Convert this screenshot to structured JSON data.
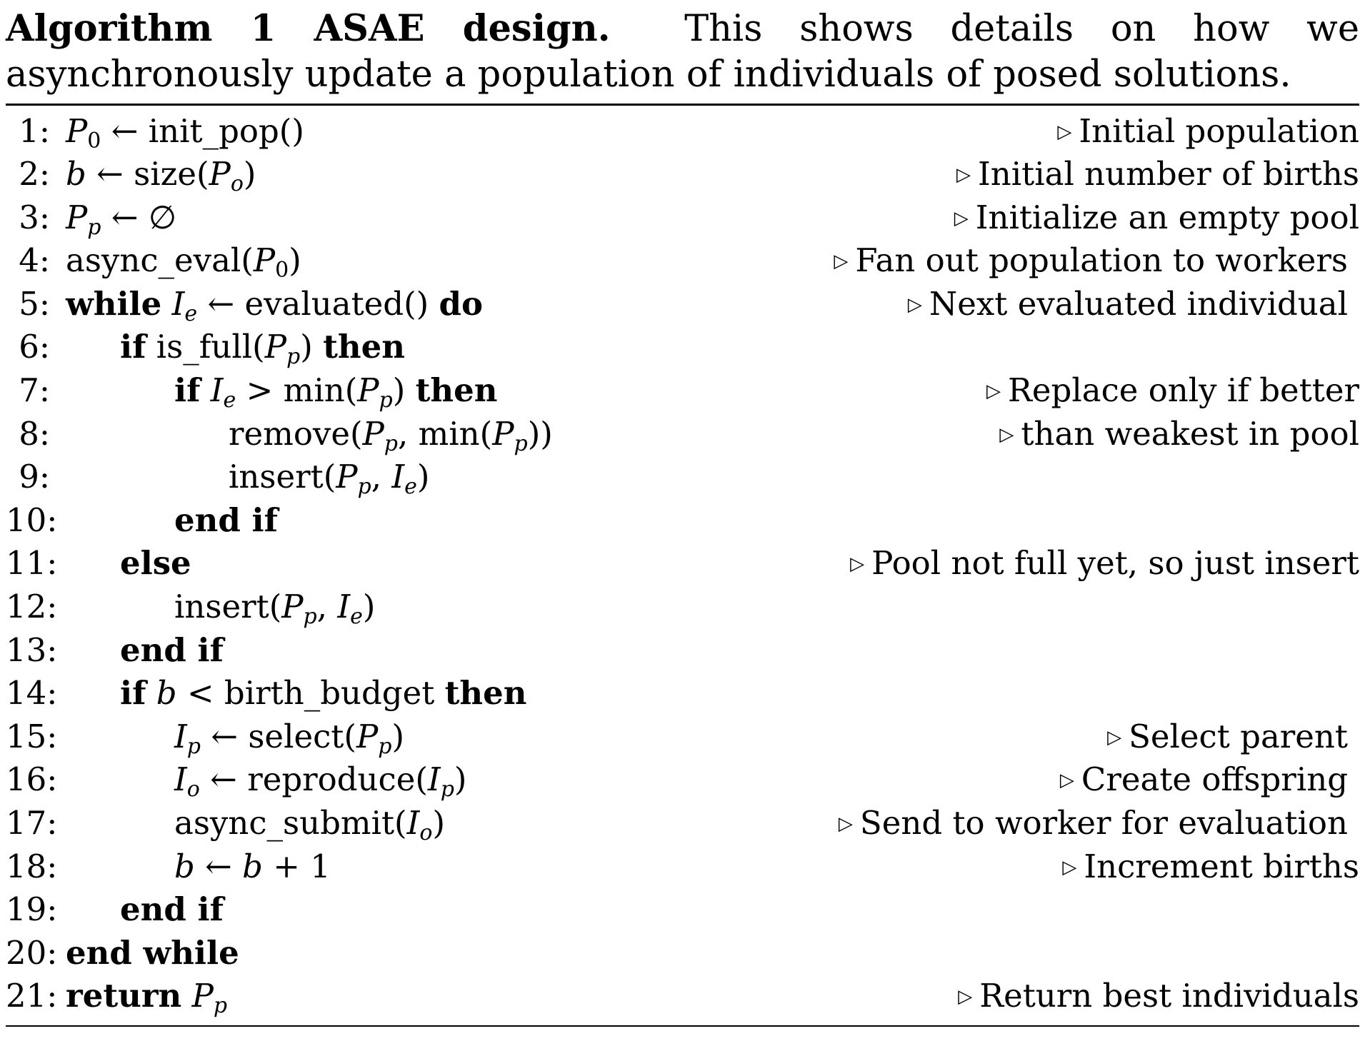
{
  "caption": {
    "label": "Algorithm 1 ASAE design.",
    "text": "This shows details on how we asynchronously update a population of individuals of posed solutions."
  },
  "lines": [
    {
      "no": "1:",
      "comment": "Initial population"
    },
    {
      "no": "2:",
      "comment": "Initial number of births"
    },
    {
      "no": "3:",
      "comment": "Initialize an empty pool"
    },
    {
      "no": "4:",
      "comment": "Fan out population to workers"
    },
    {
      "no": "5:",
      "comment": "Next evaluated individual"
    },
    {
      "no": "6:",
      "comment": ""
    },
    {
      "no": "7:",
      "comment": "Replace only if better"
    },
    {
      "no": "8:",
      "comment": "than weakest in pool"
    },
    {
      "no": "9:",
      "comment": ""
    },
    {
      "no": "10:",
      "comment": ""
    },
    {
      "no": "11:",
      "comment": "Pool not full yet, so just insert"
    },
    {
      "no": "12:",
      "comment": ""
    },
    {
      "no": "13:",
      "comment": ""
    },
    {
      "no": "14:",
      "comment": ""
    },
    {
      "no": "15:",
      "comment": "Select parent"
    },
    {
      "no": "16:",
      "comment": "Create offspring"
    },
    {
      "no": "17:",
      "comment": "Send to worker for evaluation"
    },
    {
      "no": "18:",
      "comment": "Increment births"
    },
    {
      "no": "19:",
      "comment": ""
    },
    {
      "no": "20:",
      "comment": ""
    },
    {
      "no": "21:",
      "comment": "Return best individuals"
    }
  ],
  "code": {
    "l1": {
      "var": "P",
      "sub": "0",
      "arrow": "←",
      "call": "init_pop()"
    },
    "l2": {
      "var": "b",
      "arrow": "←",
      "call": "size(",
      "arg": "P",
      "sub": "o",
      "close": ")"
    },
    "l3": {
      "var": "P",
      "sub": "p",
      "arrow": "←",
      "empty": "∅"
    },
    "l4": {
      "call": "async_eval(",
      "arg": "P",
      "sub": "0",
      "close": ")"
    },
    "l5": {
      "kw1": "while",
      "var": "I",
      "sub": "e",
      "arrow": "←",
      "call": "evaluated()",
      "kw2": "do"
    },
    "l6": {
      "kw1": "if",
      "call": "is_full(",
      "arg": "P",
      "sub": "p",
      "close": ")",
      "kw2": "then"
    },
    "l7": {
      "kw1": "if",
      "var": "I",
      "sub": "e",
      "op": ">",
      "call": "min(",
      "arg": "P",
      "sub2": "p",
      "close": ")",
      "kw2": "then"
    },
    "l8": {
      "call": "remove(",
      "arg": "P",
      "sub": "p",
      "mid": ", min(",
      "arg2": "P",
      "sub2": "p",
      "close": "))"
    },
    "l9": {
      "call": "insert(",
      "arg": "P",
      "sub": "p",
      "mid": ", ",
      "arg2": "I",
      "sub2": "e",
      "close": ")"
    },
    "l10": {
      "kw1": "end if"
    },
    "l11": {
      "kw1": "else"
    },
    "l12": {
      "call": "insert(",
      "arg": "P",
      "sub": "p",
      "mid": ", ",
      "arg2": "I",
      "sub2": "e",
      "close": ")"
    },
    "l13": {
      "kw1": "end if"
    },
    "l14": {
      "kw1": "if",
      "var": "b",
      "op": "<",
      "call": "birth_budget",
      "kw2": "then"
    },
    "l15": {
      "var": "I",
      "sub": "p",
      "arrow": "←",
      "call": "select(",
      "arg": "P",
      "sub2": "p",
      "close": ")"
    },
    "l16": {
      "var": "I",
      "sub": "o",
      "arrow": "←",
      "call": "reproduce(",
      "arg": "I",
      "sub2": "p",
      "close": ")"
    },
    "l17": {
      "call": "async_submit(",
      "arg": "I",
      "sub": "o",
      "close": ")"
    },
    "l18": {
      "var": "b",
      "arrow": "←",
      "var2": "b",
      "op": "+ 1"
    },
    "l19": {
      "kw1": "end if"
    },
    "l20": {
      "kw1": "end while"
    },
    "l21": {
      "kw1": "return",
      "var": "P",
      "sub": "p"
    }
  },
  "comment_glyph": "▷"
}
